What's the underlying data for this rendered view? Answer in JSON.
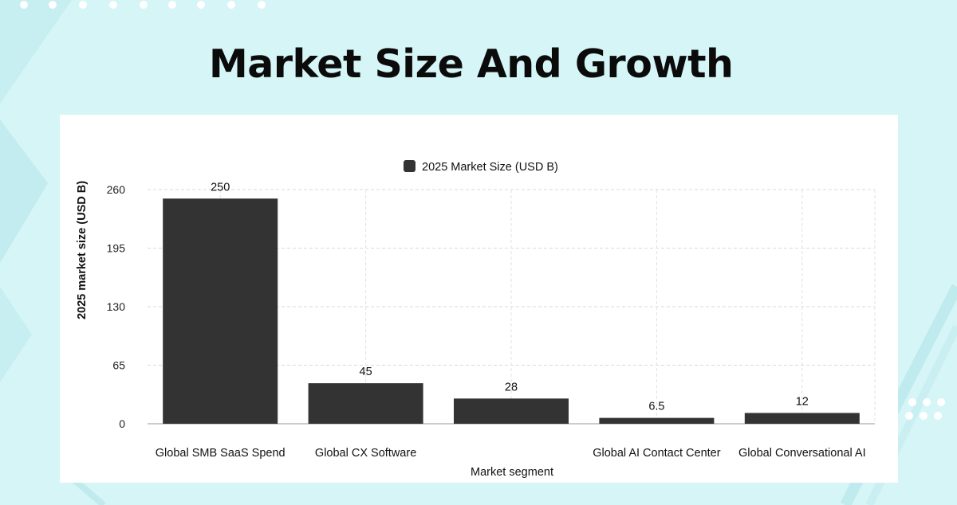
{
  "page": {
    "title": "Market Size And Growth"
  },
  "colors": {
    "background": "#d6f5f7",
    "bar": "#333333",
    "grid": "#d9d9d9",
    "card": "#ffffff"
  },
  "chart_data": {
    "type": "bar",
    "title": "",
    "categories": [
      "Global SMB SaaS Spend",
      "Global CX Software",
      "",
      "Global AI Contact Center",
      "Global Conversational AI"
    ],
    "series": [
      {
        "name": "2025 Market Size (USD B)",
        "values": [
          250,
          45,
          28,
          6.5,
          12
        ]
      }
    ],
    "data_labels": [
      "250",
      "45",
      "28",
      "6.5",
      "12"
    ],
    "xlabel": "Market segment",
    "ylabel": "2025 market size (USD B)",
    "ylim": [
      0,
      260
    ],
    "yticks": [
      0,
      65,
      130,
      195,
      260
    ],
    "grid": true,
    "legend": "top-center"
  }
}
